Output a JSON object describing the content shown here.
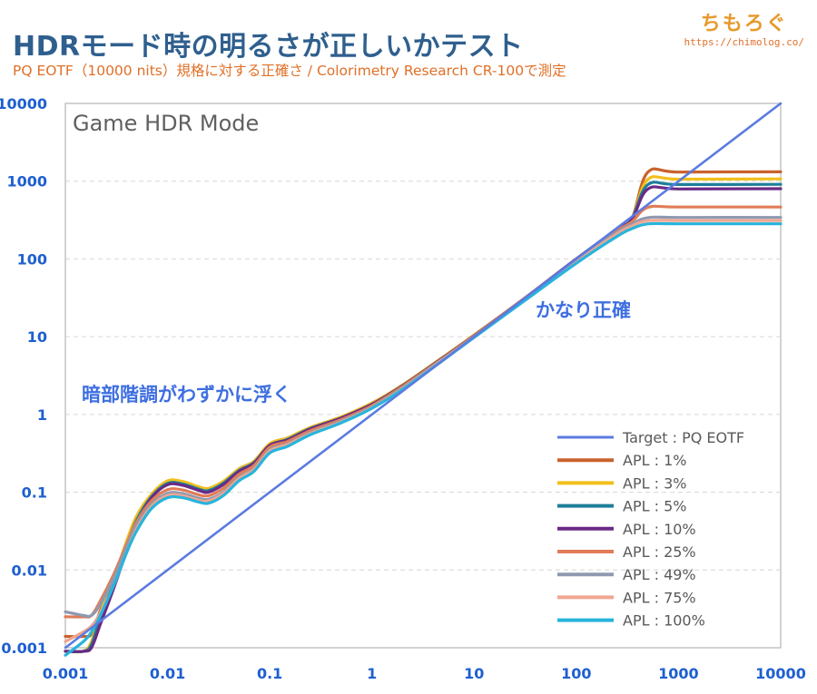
{
  "header": {
    "title": "HDRモード時の明るさが正しいかテスト",
    "subtitle": "PQ EOTF（10000 nits）規格に対する正確さ / Colorimetry Research CR-100で測定",
    "logo_name": "ちもろぐ",
    "logo_url": "https://chimolog.co/"
  },
  "colors": {
    "target": "#5b7be0",
    "apl1": "#c9622c",
    "apl3": "#f2bf1a",
    "apl5": "#1d7e9a",
    "apl10": "#6a2a86",
    "apl25": "#e07c58",
    "apl49": "#8f9ab0",
    "apl75": "#f0a690",
    "apl100": "#27b4dc",
    "axis_label": "#1e5fd0",
    "annotation": "#3e6fe0",
    "mode_label": "#606060"
  },
  "chart_data": {
    "type": "line",
    "title": "Game HDR Mode",
    "xscale": "log",
    "yscale": "log",
    "xlim": [
      0.001,
      10000
    ],
    "ylim": [
      0.001,
      10000
    ],
    "x_ticks": [
      "0.001",
      "0.01",
      "0.1",
      "1",
      "10",
      "100",
      "1000",
      "10000"
    ],
    "y_ticks": [
      "0.001",
      "0.01",
      "0.1",
      "1",
      "10",
      "100",
      "1000",
      "10000"
    ],
    "grid": true,
    "legend_position": "bottom-right",
    "annotations": [
      {
        "text": "かなり正確"
      },
      {
        "text": "暗部階調がわずかに浮く"
      }
    ],
    "series": [
      {
        "name": "Target : PQ EOTF",
        "color_key": "target",
        "points": [
          [
            0.001,
            0.001
          ],
          [
            10000,
            10000
          ]
        ]
      },
      {
        "name": "APL : 1%",
        "color_key": "apl1",
        "points": [
          [
            0.001,
            0.0014
          ],
          [
            0.0015,
            0.0014
          ],
          [
            0.0018,
            0.0015
          ],
          [
            0.0022,
            0.003
          ],
          [
            0.003,
            0.008
          ],
          [
            0.004,
            0.022
          ],
          [
            0.005,
            0.045
          ],
          [
            0.007,
            0.09
          ],
          [
            0.01,
            0.138
          ],
          [
            0.014,
            0.135
          ],
          [
            0.02,
            0.115
          ],
          [
            0.025,
            0.11
          ],
          [
            0.035,
            0.135
          ],
          [
            0.05,
            0.2
          ],
          [
            0.07,
            0.25
          ],
          [
            0.1,
            0.42
          ],
          [
            0.15,
            0.5
          ],
          [
            0.25,
            0.68
          ],
          [
            0.5,
            0.93
          ],
          [
            1,
            1.4
          ],
          [
            2,
            2.4
          ],
          [
            5,
            5.5
          ],
          [
            10,
            10.5
          ],
          [
            30,
            30
          ],
          [
            100,
            100
          ],
          [
            250,
            240
          ],
          [
            350,
            330
          ],
          [
            500,
            1300
          ],
          [
            1000,
            1310
          ],
          [
            10000,
            1320
          ]
        ]
      },
      {
        "name": "APL : 3%",
        "color_key": "apl3",
        "points": [
          [
            0.001,
            0.0009
          ],
          [
            0.0015,
            0.0009
          ],
          [
            0.0018,
            0.0012
          ],
          [
            0.0022,
            0.0028
          ],
          [
            0.003,
            0.008
          ],
          [
            0.004,
            0.024
          ],
          [
            0.005,
            0.05
          ],
          [
            0.007,
            0.095
          ],
          [
            0.01,
            0.14
          ],
          [
            0.014,
            0.138
          ],
          [
            0.02,
            0.118
          ],
          [
            0.025,
            0.112
          ],
          [
            0.035,
            0.138
          ],
          [
            0.05,
            0.2
          ],
          [
            0.07,
            0.25
          ],
          [
            0.1,
            0.42
          ],
          [
            0.15,
            0.5
          ],
          [
            0.25,
            0.68
          ],
          [
            0.5,
            0.93
          ],
          [
            1,
            1.4
          ],
          [
            2,
            2.4
          ],
          [
            5,
            5.5
          ],
          [
            10,
            10.5
          ],
          [
            30,
            30
          ],
          [
            100,
            100
          ],
          [
            250,
            240
          ],
          [
            350,
            330
          ],
          [
            500,
            1050
          ],
          [
            1000,
            1060
          ],
          [
            10000,
            1070
          ]
        ]
      },
      {
        "name": "APL : 5%",
        "color_key": "apl5",
        "points": [
          [
            0.001,
            0.0009
          ],
          [
            0.0015,
            0.0009
          ],
          [
            0.0018,
            0.0011
          ],
          [
            0.0022,
            0.0025
          ],
          [
            0.003,
            0.007
          ],
          [
            0.004,
            0.021
          ],
          [
            0.005,
            0.044
          ],
          [
            0.007,
            0.088
          ],
          [
            0.01,
            0.13
          ],
          [
            0.014,
            0.128
          ],
          [
            0.02,
            0.11
          ],
          [
            0.025,
            0.105
          ],
          [
            0.035,
            0.13
          ],
          [
            0.05,
            0.19
          ],
          [
            0.07,
            0.24
          ],
          [
            0.1,
            0.4
          ],
          [
            0.15,
            0.48
          ],
          [
            0.25,
            0.66
          ],
          [
            0.5,
            0.9
          ],
          [
            1,
            1.35
          ],
          [
            2,
            2.35
          ],
          [
            5,
            5.4
          ],
          [
            10,
            10.3
          ],
          [
            30,
            30
          ],
          [
            100,
            100
          ],
          [
            250,
            240
          ],
          [
            350,
            330
          ],
          [
            500,
            900
          ],
          [
            1000,
            905
          ],
          [
            10000,
            910
          ]
        ]
      },
      {
        "name": "APL : 10%",
        "color_key": "apl10",
        "points": [
          [
            0.001,
            0.0009
          ],
          [
            0.0015,
            0.0009
          ],
          [
            0.0018,
            0.001
          ],
          [
            0.0022,
            0.002
          ],
          [
            0.003,
            0.006
          ],
          [
            0.004,
            0.018
          ],
          [
            0.005,
            0.04
          ],
          [
            0.007,
            0.085
          ],
          [
            0.01,
            0.125
          ],
          [
            0.014,
            0.123
          ],
          [
            0.02,
            0.106
          ],
          [
            0.025,
            0.1
          ],
          [
            0.035,
            0.125
          ],
          [
            0.05,
            0.185
          ],
          [
            0.07,
            0.235
          ],
          [
            0.1,
            0.4
          ],
          [
            0.15,
            0.47
          ],
          [
            0.25,
            0.65
          ],
          [
            0.5,
            0.9
          ],
          [
            1,
            1.35
          ],
          [
            2,
            2.35
          ],
          [
            5,
            5.4
          ],
          [
            10,
            10.3
          ],
          [
            30,
            30
          ],
          [
            100,
            100
          ],
          [
            250,
            240
          ],
          [
            350,
            320
          ],
          [
            500,
            790
          ],
          [
            1000,
            795
          ],
          [
            10000,
            800
          ]
        ]
      },
      {
        "name": "APL : 25%",
        "color_key": "apl25",
        "points": [
          [
            0.001,
            0.0025
          ],
          [
            0.0015,
            0.0025
          ],
          [
            0.0018,
            0.0026
          ],
          [
            0.0022,
            0.004
          ],
          [
            0.003,
            0.009
          ],
          [
            0.004,
            0.022
          ],
          [
            0.005,
            0.042
          ],
          [
            0.007,
            0.078
          ],
          [
            0.01,
            0.108
          ],
          [
            0.014,
            0.107
          ],
          [
            0.02,
            0.093
          ],
          [
            0.025,
            0.09
          ],
          [
            0.035,
            0.112
          ],
          [
            0.05,
            0.17
          ],
          [
            0.07,
            0.22
          ],
          [
            0.1,
            0.38
          ],
          [
            0.15,
            0.45
          ],
          [
            0.25,
            0.62
          ],
          [
            0.5,
            0.86
          ],
          [
            1,
            1.3
          ],
          [
            2,
            2.3
          ],
          [
            5,
            5.3
          ],
          [
            10,
            10.2
          ],
          [
            30,
            30
          ],
          [
            100,
            98
          ],
          [
            250,
            230
          ],
          [
            350,
            300
          ],
          [
            500,
            460
          ],
          [
            1000,
            465
          ],
          [
            10000,
            465
          ]
        ]
      },
      {
        "name": "APL : 49%",
        "color_key": "apl49",
        "points": [
          [
            0.001,
            0.0029
          ],
          [
            0.0015,
            0.0026
          ],
          [
            0.0018,
            0.0026
          ],
          [
            0.0022,
            0.0036
          ],
          [
            0.003,
            0.008
          ],
          [
            0.004,
            0.02
          ],
          [
            0.005,
            0.038
          ],
          [
            0.007,
            0.07
          ],
          [
            0.01,
            0.097
          ],
          [
            0.014,
            0.096
          ],
          [
            0.02,
            0.084
          ],
          [
            0.025,
            0.081
          ],
          [
            0.035,
            0.1
          ],
          [
            0.05,
            0.155
          ],
          [
            0.07,
            0.2
          ],
          [
            0.1,
            0.35
          ],
          [
            0.15,
            0.42
          ],
          [
            0.25,
            0.58
          ],
          [
            0.5,
            0.82
          ],
          [
            1,
            1.25
          ],
          [
            2,
            2.2
          ],
          [
            5,
            5.2
          ],
          [
            10,
            10
          ],
          [
            30,
            29
          ],
          [
            100,
            95
          ],
          [
            250,
            220
          ],
          [
            350,
            280
          ],
          [
            500,
            340
          ],
          [
            1000,
            342
          ],
          [
            10000,
            342
          ]
        ]
      },
      {
        "name": "APL : 75%",
        "color_key": "apl75",
        "points": [
          [
            0.001,
            0.0012
          ],
          [
            0.0015,
            0.0016
          ],
          [
            0.0018,
            0.0019
          ],
          [
            0.0022,
            0.0028
          ],
          [
            0.003,
            0.0065
          ],
          [
            0.004,
            0.017
          ],
          [
            0.005,
            0.034
          ],
          [
            0.007,
            0.066
          ],
          [
            0.01,
            0.091
          ],
          [
            0.014,
            0.09
          ],
          [
            0.02,
            0.079
          ],
          [
            0.025,
            0.077
          ],
          [
            0.035,
            0.096
          ],
          [
            0.05,
            0.15
          ],
          [
            0.07,
            0.195
          ],
          [
            0.1,
            0.34
          ],
          [
            0.15,
            0.41
          ],
          [
            0.25,
            0.57
          ],
          [
            0.5,
            0.8
          ],
          [
            1,
            1.22
          ],
          [
            2,
            2.15
          ],
          [
            5,
            5.1
          ],
          [
            10,
            9.9
          ],
          [
            30,
            28.5
          ],
          [
            100,
            92
          ],
          [
            250,
            210
          ],
          [
            350,
            265
          ],
          [
            500,
            310
          ],
          [
            1000,
            312
          ],
          [
            10000,
            312
          ]
        ]
      },
      {
        "name": "APL : 100%",
        "color_key": "apl100",
        "points": [
          [
            0.001,
            0.0008
          ],
          [
            0.0015,
            0.0012
          ],
          [
            0.0018,
            0.0016
          ],
          [
            0.0022,
            0.0026
          ],
          [
            0.003,
            0.0065
          ],
          [
            0.004,
            0.017
          ],
          [
            0.005,
            0.032
          ],
          [
            0.007,
            0.062
          ],
          [
            0.01,
            0.085
          ],
          [
            0.014,
            0.085
          ],
          [
            0.02,
            0.075
          ],
          [
            0.025,
            0.072
          ],
          [
            0.035,
            0.09
          ],
          [
            0.05,
            0.14
          ],
          [
            0.07,
            0.185
          ],
          [
            0.1,
            0.32
          ],
          [
            0.15,
            0.39
          ],
          [
            0.25,
            0.55
          ],
          [
            0.5,
            0.78
          ],
          [
            1,
            1.2
          ],
          [
            2,
            2.1
          ],
          [
            5,
            5
          ],
          [
            10,
            9.8
          ],
          [
            30,
            28
          ],
          [
            100,
            88
          ],
          [
            250,
            195
          ],
          [
            350,
            245
          ],
          [
            500,
            282
          ],
          [
            1000,
            283
          ],
          [
            10000,
            283
          ]
        ]
      }
    ]
  }
}
